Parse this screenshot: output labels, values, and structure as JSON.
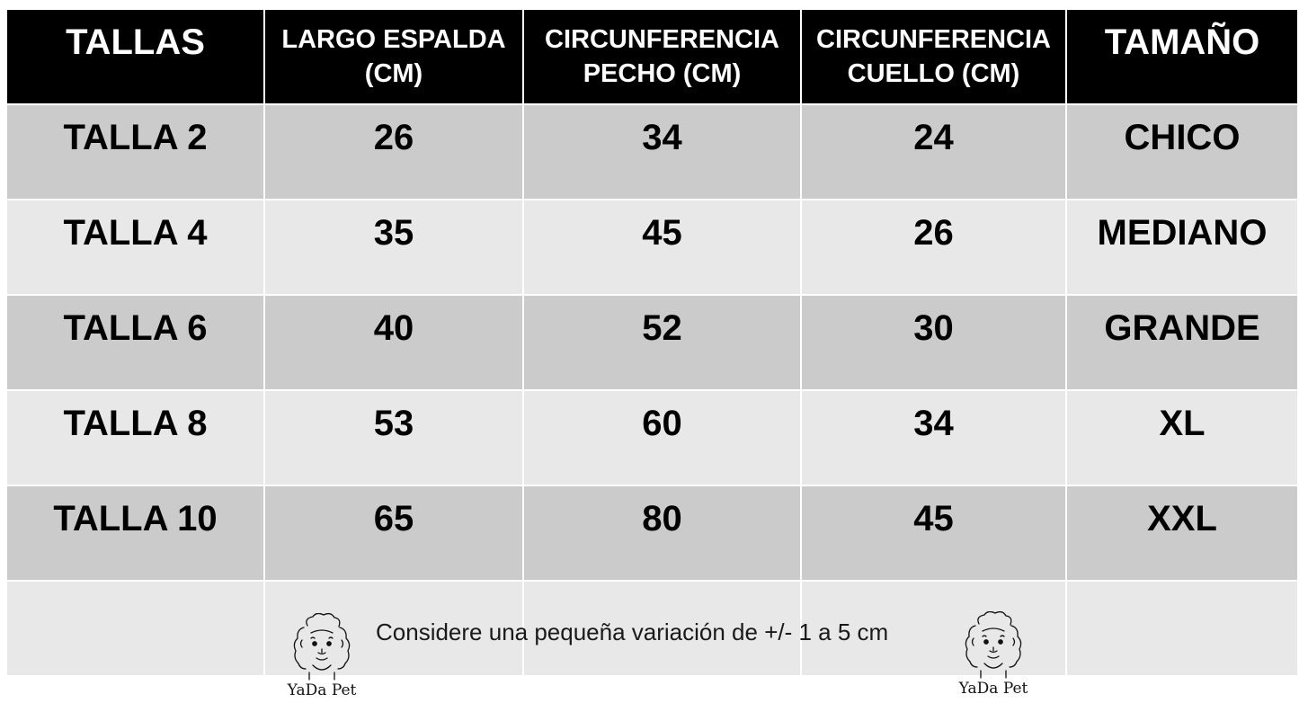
{
  "table": {
    "headers": [
      [
        "TALLAS"
      ],
      [
        "LARGO ESPALDA",
        "(CM)"
      ],
      [
        "CIRCUNFERENCIA",
        "PECHO (CM)"
      ],
      [
        "CIRCUNFERENCIA",
        "CUELLO (CM)"
      ],
      [
        "TAMAÑO"
      ]
    ],
    "rows": [
      [
        "TALLA 2",
        "26",
        "34",
        "24",
        "CHICO"
      ],
      [
        "TALLA 4",
        "35",
        "45",
        "26",
        "MEDIANO"
      ],
      [
        "TALLA 6",
        "40",
        "52",
        "30",
        "GRANDE"
      ],
      [
        "TALLA 8",
        "53",
        "60",
        "34",
        "XL"
      ],
      [
        "TALLA 10",
        "65",
        "80",
        "45",
        "XXL"
      ]
    ]
  },
  "footer": {
    "note": "Considere una pequeña variación de +/- 1 a 5 cm",
    "logo_text": "YaDa Pet"
  },
  "colors": {
    "header_bg": "#000000",
    "row_dark": "#cbcbcb",
    "row_light": "#e8e8e8"
  },
  "icons": [
    "poodle-logo-icon"
  ]
}
